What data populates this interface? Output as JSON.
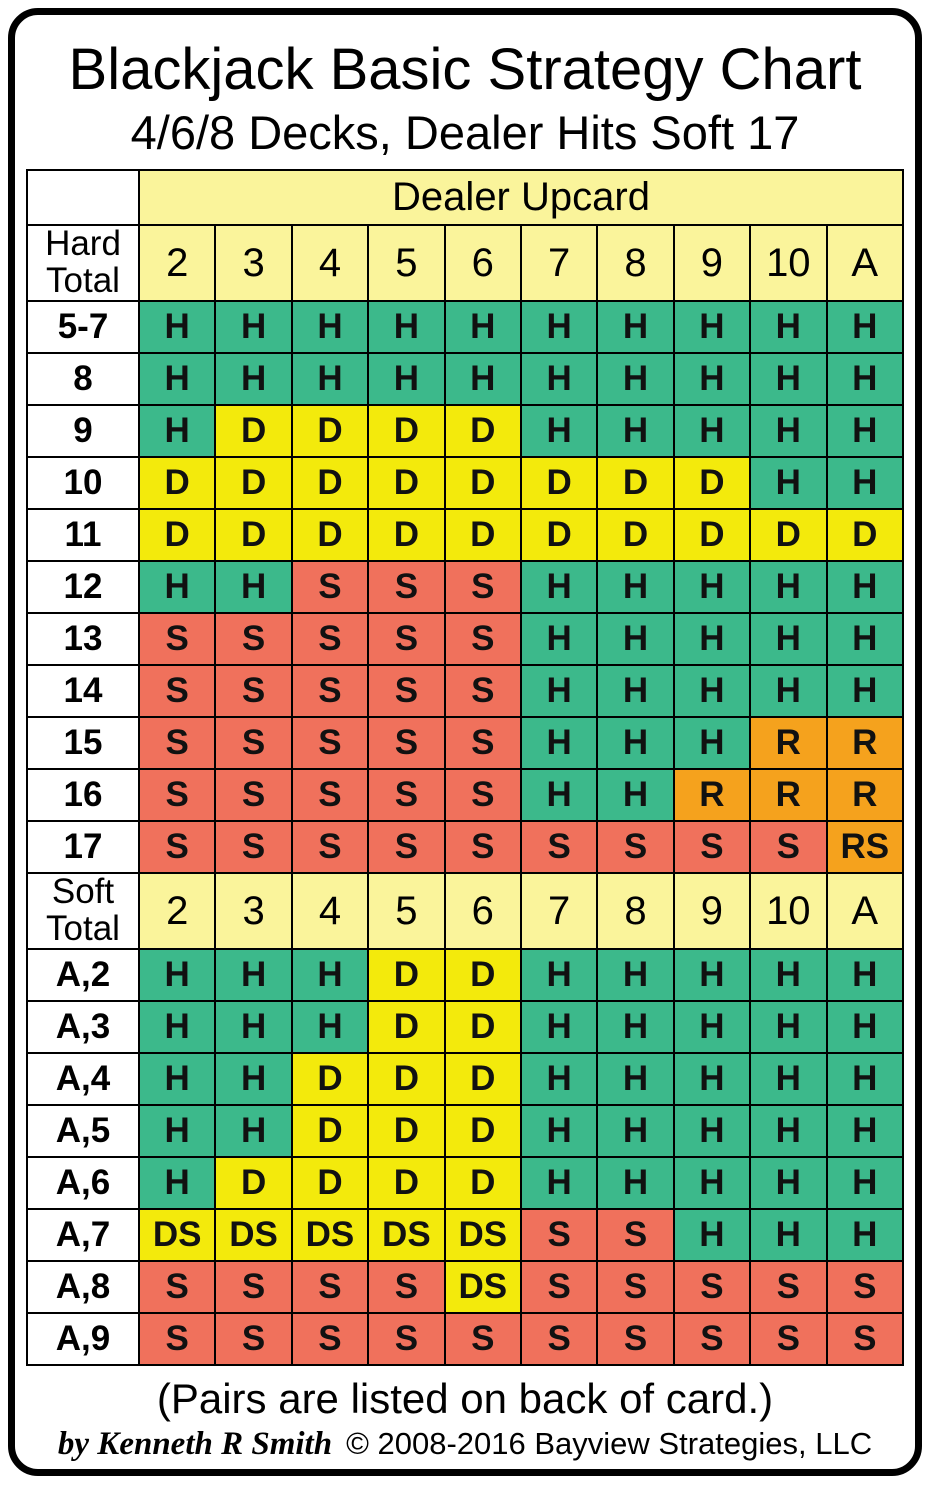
{
  "card": {
    "title": "Blackjack Basic Strategy Chart",
    "subtitle": "4/6/8 Decks, Dealer Hits Soft 17",
    "footer_note": "(Pairs are listed on back of card.)",
    "byline": "by Kenneth R Smith",
    "copyright": "© 2008-2016 Bayview Strategies, LLC"
  },
  "colors": {
    "hit_green": "#3CB98B",
    "double_yellow": "#F3EA0C",
    "stand_salmon": "#F0715C",
    "surrender_orange": "#F5A21D",
    "header_pale_yellow": "#FAF49B",
    "grid_border": "#000000",
    "card_background": "#FFFFFF"
  },
  "action_styles": {
    "H": "hit",
    "D": "double",
    "S": "stand",
    "R": "surrender",
    "DS": "double",
    "RS": "surrender"
  },
  "chart_data": {
    "type": "table",
    "dealer_header": "Dealer Upcard",
    "columns": [
      "2",
      "3",
      "4",
      "5",
      "6",
      "7",
      "8",
      "9",
      "10",
      "A"
    ],
    "hard_label": "Hard\nTotal",
    "soft_label": "Soft\nTotal",
    "hard_rows": [
      {
        "label": "5-7",
        "cells": [
          "H",
          "H",
          "H",
          "H",
          "H",
          "H",
          "H",
          "H",
          "H",
          "H"
        ]
      },
      {
        "label": "8",
        "cells": [
          "H",
          "H",
          "H",
          "H",
          "H",
          "H",
          "H",
          "H",
          "H",
          "H"
        ]
      },
      {
        "label": "9",
        "cells": [
          "H",
          "D",
          "D",
          "D",
          "D",
          "H",
          "H",
          "H",
          "H",
          "H"
        ]
      },
      {
        "label": "10",
        "cells": [
          "D",
          "D",
          "D",
          "D",
          "D",
          "D",
          "D",
          "D",
          "H",
          "H"
        ]
      },
      {
        "label": "11",
        "cells": [
          "D",
          "D",
          "D",
          "D",
          "D",
          "D",
          "D",
          "D",
          "D",
          "D"
        ]
      },
      {
        "label": "12",
        "cells": [
          "H",
          "H",
          "S",
          "S",
          "S",
          "H",
          "H",
          "H",
          "H",
          "H"
        ]
      },
      {
        "label": "13",
        "cells": [
          "S",
          "S",
          "S",
          "S",
          "S",
          "H",
          "H",
          "H",
          "H",
          "H"
        ]
      },
      {
        "label": "14",
        "cells": [
          "S",
          "S",
          "S",
          "S",
          "S",
          "H",
          "H",
          "H",
          "H",
          "H"
        ]
      },
      {
        "label": "15",
        "cells": [
          "S",
          "S",
          "S",
          "S",
          "S",
          "H",
          "H",
          "H",
          "R",
          "R"
        ]
      },
      {
        "label": "16",
        "cells": [
          "S",
          "S",
          "S",
          "S",
          "S",
          "H",
          "H",
          "R",
          "R",
          "R"
        ]
      },
      {
        "label": "17",
        "cells": [
          "S",
          "S",
          "S",
          "S",
          "S",
          "S",
          "S",
          "S",
          "S",
          "RS"
        ]
      }
    ],
    "soft_rows": [
      {
        "label": "A,2",
        "cells": [
          "H",
          "H",
          "H",
          "D",
          "D",
          "H",
          "H",
          "H",
          "H",
          "H"
        ]
      },
      {
        "label": "A,3",
        "cells": [
          "H",
          "H",
          "H",
          "D",
          "D",
          "H",
          "H",
          "H",
          "H",
          "H"
        ]
      },
      {
        "label": "A,4",
        "cells": [
          "H",
          "H",
          "D",
          "D",
          "D",
          "H",
          "H",
          "H",
          "H",
          "H"
        ]
      },
      {
        "label": "A,5",
        "cells": [
          "H",
          "H",
          "D",
          "D",
          "D",
          "H",
          "H",
          "H",
          "H",
          "H"
        ]
      },
      {
        "label": "A,6",
        "cells": [
          "H",
          "D",
          "D",
          "D",
          "D",
          "H",
          "H",
          "H",
          "H",
          "H"
        ]
      },
      {
        "label": "A,7",
        "cells": [
          "DS",
          "DS",
          "DS",
          "DS",
          "DS",
          "S",
          "S",
          "H",
          "H",
          "H"
        ]
      },
      {
        "label": "A,8",
        "cells": [
          "S",
          "S",
          "S",
          "S",
          "DS",
          "S",
          "S",
          "S",
          "S",
          "S"
        ]
      },
      {
        "label": "A,9",
        "cells": [
          "S",
          "S",
          "S",
          "S",
          "S",
          "S",
          "S",
          "S",
          "S",
          "S"
        ]
      }
    ]
  }
}
